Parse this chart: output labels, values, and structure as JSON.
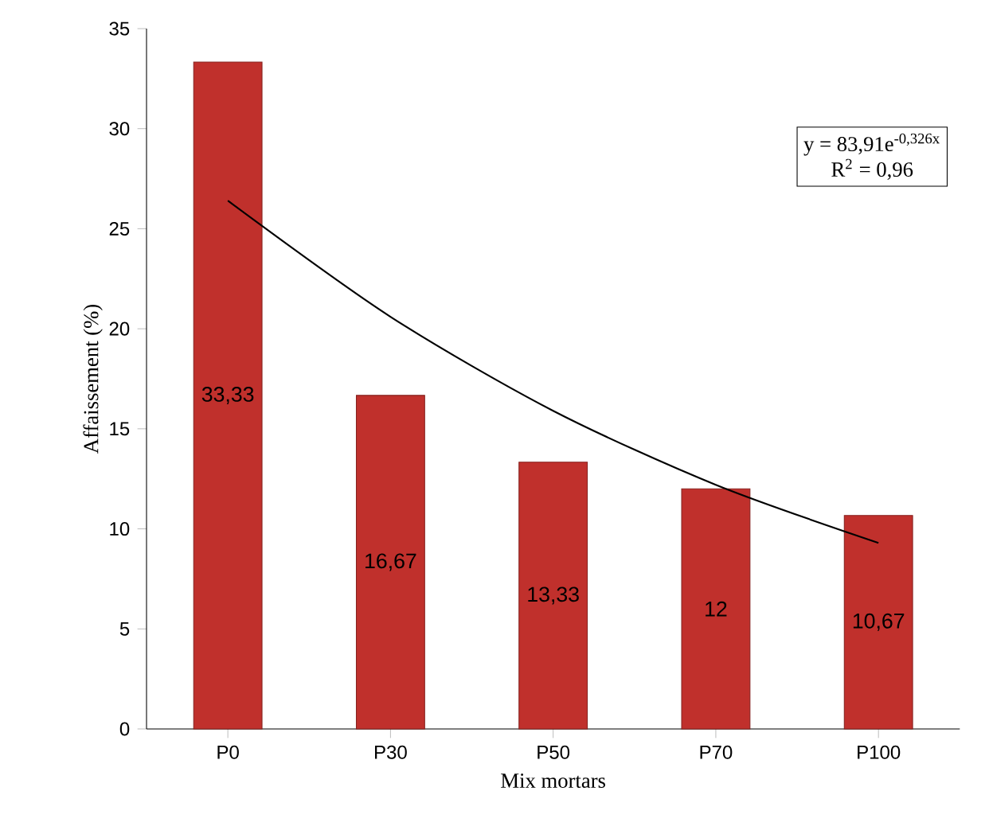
{
  "chart_data": {
    "type": "bar",
    "xlabel": "Mix mortars",
    "ylabel": "Affaissement (%)",
    "categories": [
      "P0",
      "P30",
      "P50",
      "P70",
      "P100"
    ],
    "series": [
      {
        "color": "#c0302c",
        "values": [
          33.33,
          16.67,
          13.33,
          12,
          10.67
        ],
        "value_labels": [
          "33,33",
          "16,67",
          "13,33",
          "12",
          "10,67"
        ]
      },
      {
        "type": "line",
        "color": "#000000",
        "values": [
          26.4,
          20.6,
          15.9,
          12.2,
          9.3
        ]
      }
    ],
    "ylim": [
      0,
      35
    ],
    "yticks": [
      0,
      5,
      10,
      15,
      20,
      25,
      30,
      35
    ],
    "grid": false,
    "annotations": [
      "y = 83,91e$^{-0,326x}$",
      "R$^{2}$ = 0,96"
    ]
  }
}
